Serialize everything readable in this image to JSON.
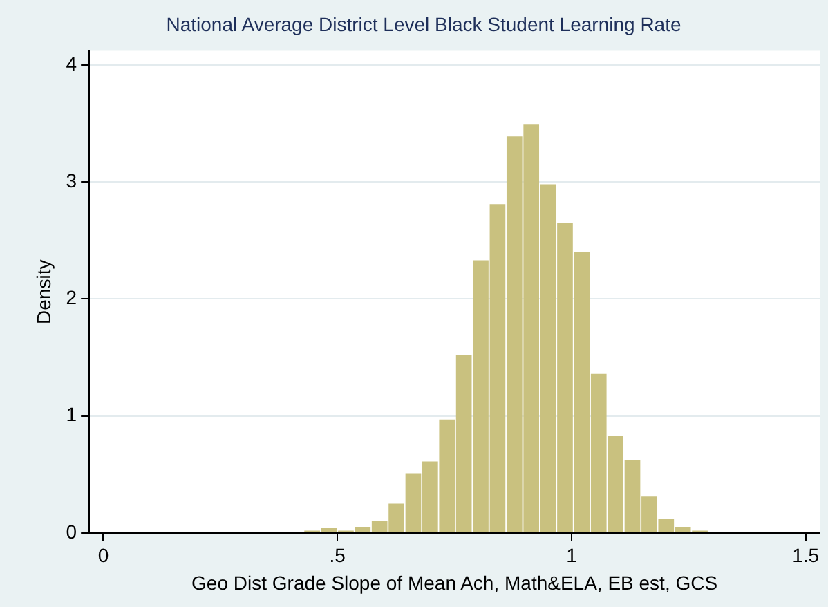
{
  "chart_data": {
    "type": "histogram",
    "title": "National Average District Level Black Student Learning Rate",
    "xlabel": "Geo Dist Grade Slope of Mean Ach, Math&ELA, EB est, GCS",
    "ylabel": "Density",
    "bins": [
      0.14,
      0.176,
      0.212,
      0.248,
      0.284,
      0.32,
      0.356,
      0.392,
      0.428,
      0.464,
      0.5,
      0.536,
      0.572,
      0.608,
      0.644,
      0.68,
      0.716,
      0.752,
      0.788,
      0.824,
      0.86,
      0.896,
      0.932,
      0.968,
      1.004,
      1.04,
      1.076,
      1.112,
      1.148,
      1.184,
      1.22,
      1.256,
      1.292,
      1.328
    ],
    "values": [
      0.01,
      0,
      0,
      0,
      0,
      0,
      0.01,
      0.01,
      0.02,
      0.04,
      0.02,
      0.05,
      0.1,
      0.25,
      0.51,
      0.61,
      0.97,
      1.52,
      2.33,
      2.81,
      3.39,
      3.49,
      2.98,
      2.65,
      2.4,
      1.36,
      0.83,
      0.62,
      0.31,
      0.12,
      0.05,
      0.02,
      0.01
    ],
    "color": "#c9c17f",
    "xlim": [
      -0.03,
      1.53
    ],
    "ylim": [
      0,
      4.12
    ],
    "xticks": [
      0,
      {
        "value": 0.5,
        "label": ".5"
      },
      1,
      1.5
    ],
    "yticks": [
      0,
      1,
      2,
      3,
      4
    ],
    "grid": "y"
  }
}
